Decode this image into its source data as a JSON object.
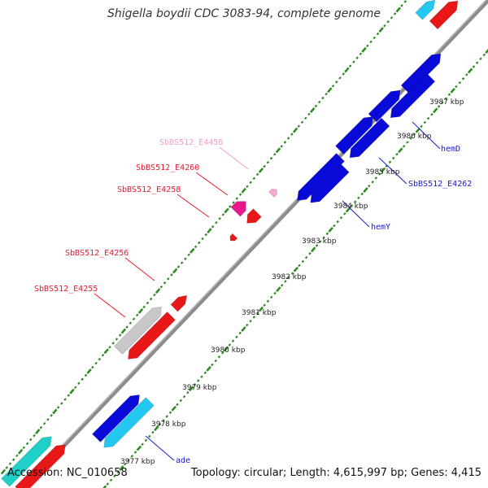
{
  "title": "Shigella boydii CDC 3083-94, complete genome",
  "footer": {
    "accession": "Accession: NC_010658",
    "summary": "Topology: circular; Length: 4,615,997 bp; Genes: 4,415"
  },
  "ticks": [
    {
      "label": "3977 kbp"
    },
    {
      "label": "3978 kbp"
    },
    {
      "label": "3979 kbp"
    },
    {
      "label": "3980 kbp"
    },
    {
      "label": "3981 kbp"
    },
    {
      "label": "3982 kbp"
    },
    {
      "label": "3983 kbp"
    },
    {
      "label": "3984 kbp"
    },
    {
      "label": "3985 kbp"
    },
    {
      "label": "3986 kbp"
    },
    {
      "label": "3987 kbp"
    }
  ],
  "gene_labels": [
    {
      "text": "SbBS512_E4456",
      "color": "#f39ac8"
    },
    {
      "text": "SbBS512_E4260",
      "color": "#e8192c"
    },
    {
      "text": "SbBS512_E4258",
      "color": "#e8192c"
    },
    {
      "text": "SbBS512_E4256",
      "color": "#e8192c"
    },
    {
      "text": "SbBS512_E4255",
      "color": "#e8192c"
    },
    {
      "text": "hemD",
      "color": "#1a1acc"
    },
    {
      "text": "SbBS512_E4262",
      "color": "#1a1acc"
    },
    {
      "text": "hemY",
      "color": "#1a1acc"
    },
    {
      "text": "ade",
      "color": "#1a1acc"
    }
  ],
  "colors": {
    "backbone": "#8c8c8c",
    "tick_marks": "#2e8b22",
    "gene_blue": "#0a0ad8",
    "gene_red": "#e81818",
    "gene_cyan": "#22c8f0",
    "gene_teal": "#1fd0c8",
    "gene_gray": "#c8c8c8",
    "gene_magenta": "#e8188c",
    "gene_pink": "#f5a8d0"
  }
}
